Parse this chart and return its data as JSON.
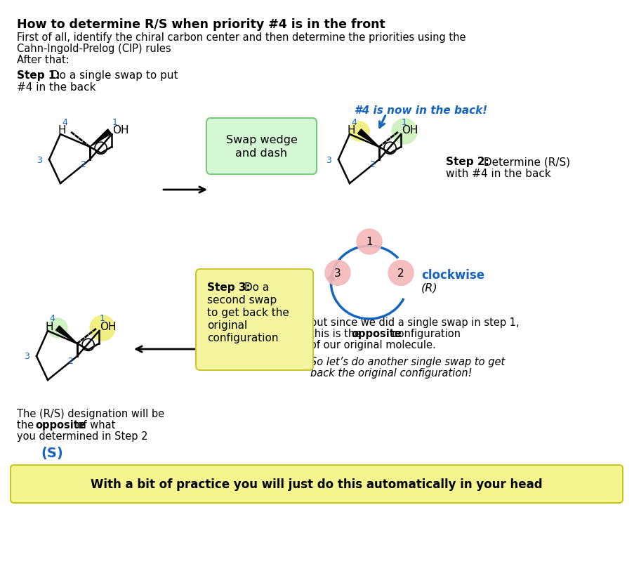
{
  "title": "How to determine R/S when priority #4 is in the front",
  "intro_line1": "First of all, identify the chiral carbon center and then determine the priorities using the",
  "intro_line2": "Cahn-Ingold-Prelog (CIP) rules",
  "intro_line3": "After that:",
  "step1_bold": "Step 1:",
  "step1_rest": " Do a single swap to put",
  "step1_line2": "#4 in the back",
  "swap_box_text": "Swap wedge\nand dash",
  "step2_bold": "Step 2:",
  "step2_rest": " Determine (R/S)",
  "step2_line2": "with #4 in the back",
  "blue_italic": "#4 is now in the back!",
  "step3_bold": "Step 3:",
  "step3_rest": " Do a",
  "step3_line2": "second swap",
  "step3_line3": "to get back the",
  "step3_line4": "original",
  "step3_line5": "configuration",
  "clockwise_text": "clockwise",
  "R_italic": "(R)",
  "but_line1": "but since we did a single swap in step 1,",
  "but_line2a": "this is the ",
  "but_line2b": "opposite",
  "but_line2c": " configuration",
  "but_line3": "of our original molecule.",
  "italic_line1": "So let’s do another single swap to get",
  "italic_line2": "back the original configuration!",
  "bot_left1": "The (R/S) designation will be",
  "bot_left2a": "the ",
  "bot_left2b": "opposite",
  "bot_left2c": " of what",
  "bot_left3": "you determined in Step 2",
  "S_text": "(S)",
  "footer": "With a bit of practice you will just do this automatically in your head",
  "colors": {
    "blue": "#1565C0",
    "black": "#000000",
    "white": "#FFFFFF",
    "green_box_fill": "#d4f7d4",
    "green_box_edge": "#7bc97b",
    "yellow_box_fill": "#f5f5a0",
    "yellow_box_edge": "#c8c830",
    "yellow_footer_fill": "#f5f590",
    "yellow_footer_edge": "#c8c820",
    "pink": "#f5b8b8",
    "light_green": "#c8f0b8",
    "yellow_hl": "#f0ee70"
  }
}
